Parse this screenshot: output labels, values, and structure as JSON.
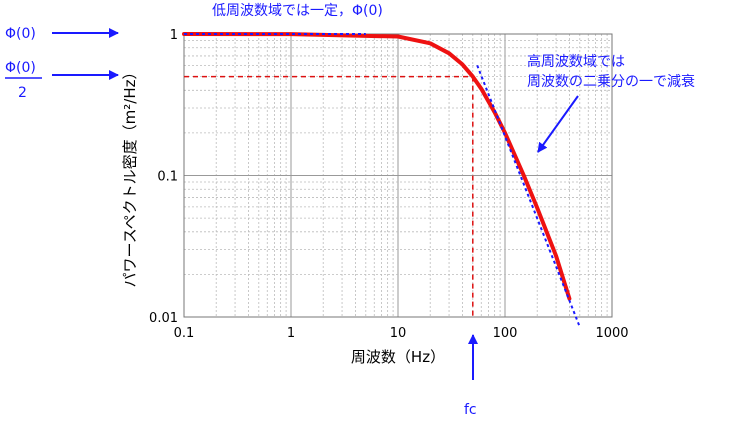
{
  "chart_data": {
    "type": "line",
    "xscale": "log",
    "yscale": "log",
    "xlim": [
      0.1,
      1000
    ],
    "ylim": [
      0.01,
      1
    ],
    "grid": true,
    "x_ticks": [
      "0.1",
      "1",
      "10",
      "100",
      "1000"
    ],
    "y_ticks": [
      "1",
      "0.1",
      "0.01"
    ],
    "xlabel": "周波数（Hz）",
    "ylabel": "パワースペクトル密度（m²/Hz）",
    "series": [
      {
        "x": [
          0.1,
          1,
          5,
          10,
          20,
          30,
          40,
          50,
          60,
          80,
          100,
          150,
          200,
          300,
          400
        ],
        "y": [
          1.0,
          0.999,
          0.97,
          0.96,
          0.86,
          0.73,
          0.61,
          0.5,
          0.41,
          0.28,
          0.2,
          0.1,
          0.059,
          0.027,
          0.0135
        ],
        "color": "#ee1111"
      }
    ],
    "asymptote_low": {
      "x": [
        0.1,
        5
      ],
      "y": [
        1,
        1
      ]
    },
    "asymptote_high": {
      "x": [
        55,
        500
      ],
      "y": [
        0.6,
        0.0085
      ]
    },
    "fc_value": 50,
    "fc_level": 0.5
  },
  "annotations": {
    "phi0_left": "Φ(0)",
    "phi0_half_num": "Φ(0)",
    "phi0_half_den": "2",
    "top_note": "低周波数域では一定，Φ(0)",
    "right_note_line1": "高周波数域では",
    "right_note_line2": "周波数の二乗分の一で減衰",
    "fc_label": "fc"
  },
  "colors": {
    "curve": "#ee1111",
    "accent": "#1a1aff",
    "dashed_ref": "#dd1111"
  }
}
